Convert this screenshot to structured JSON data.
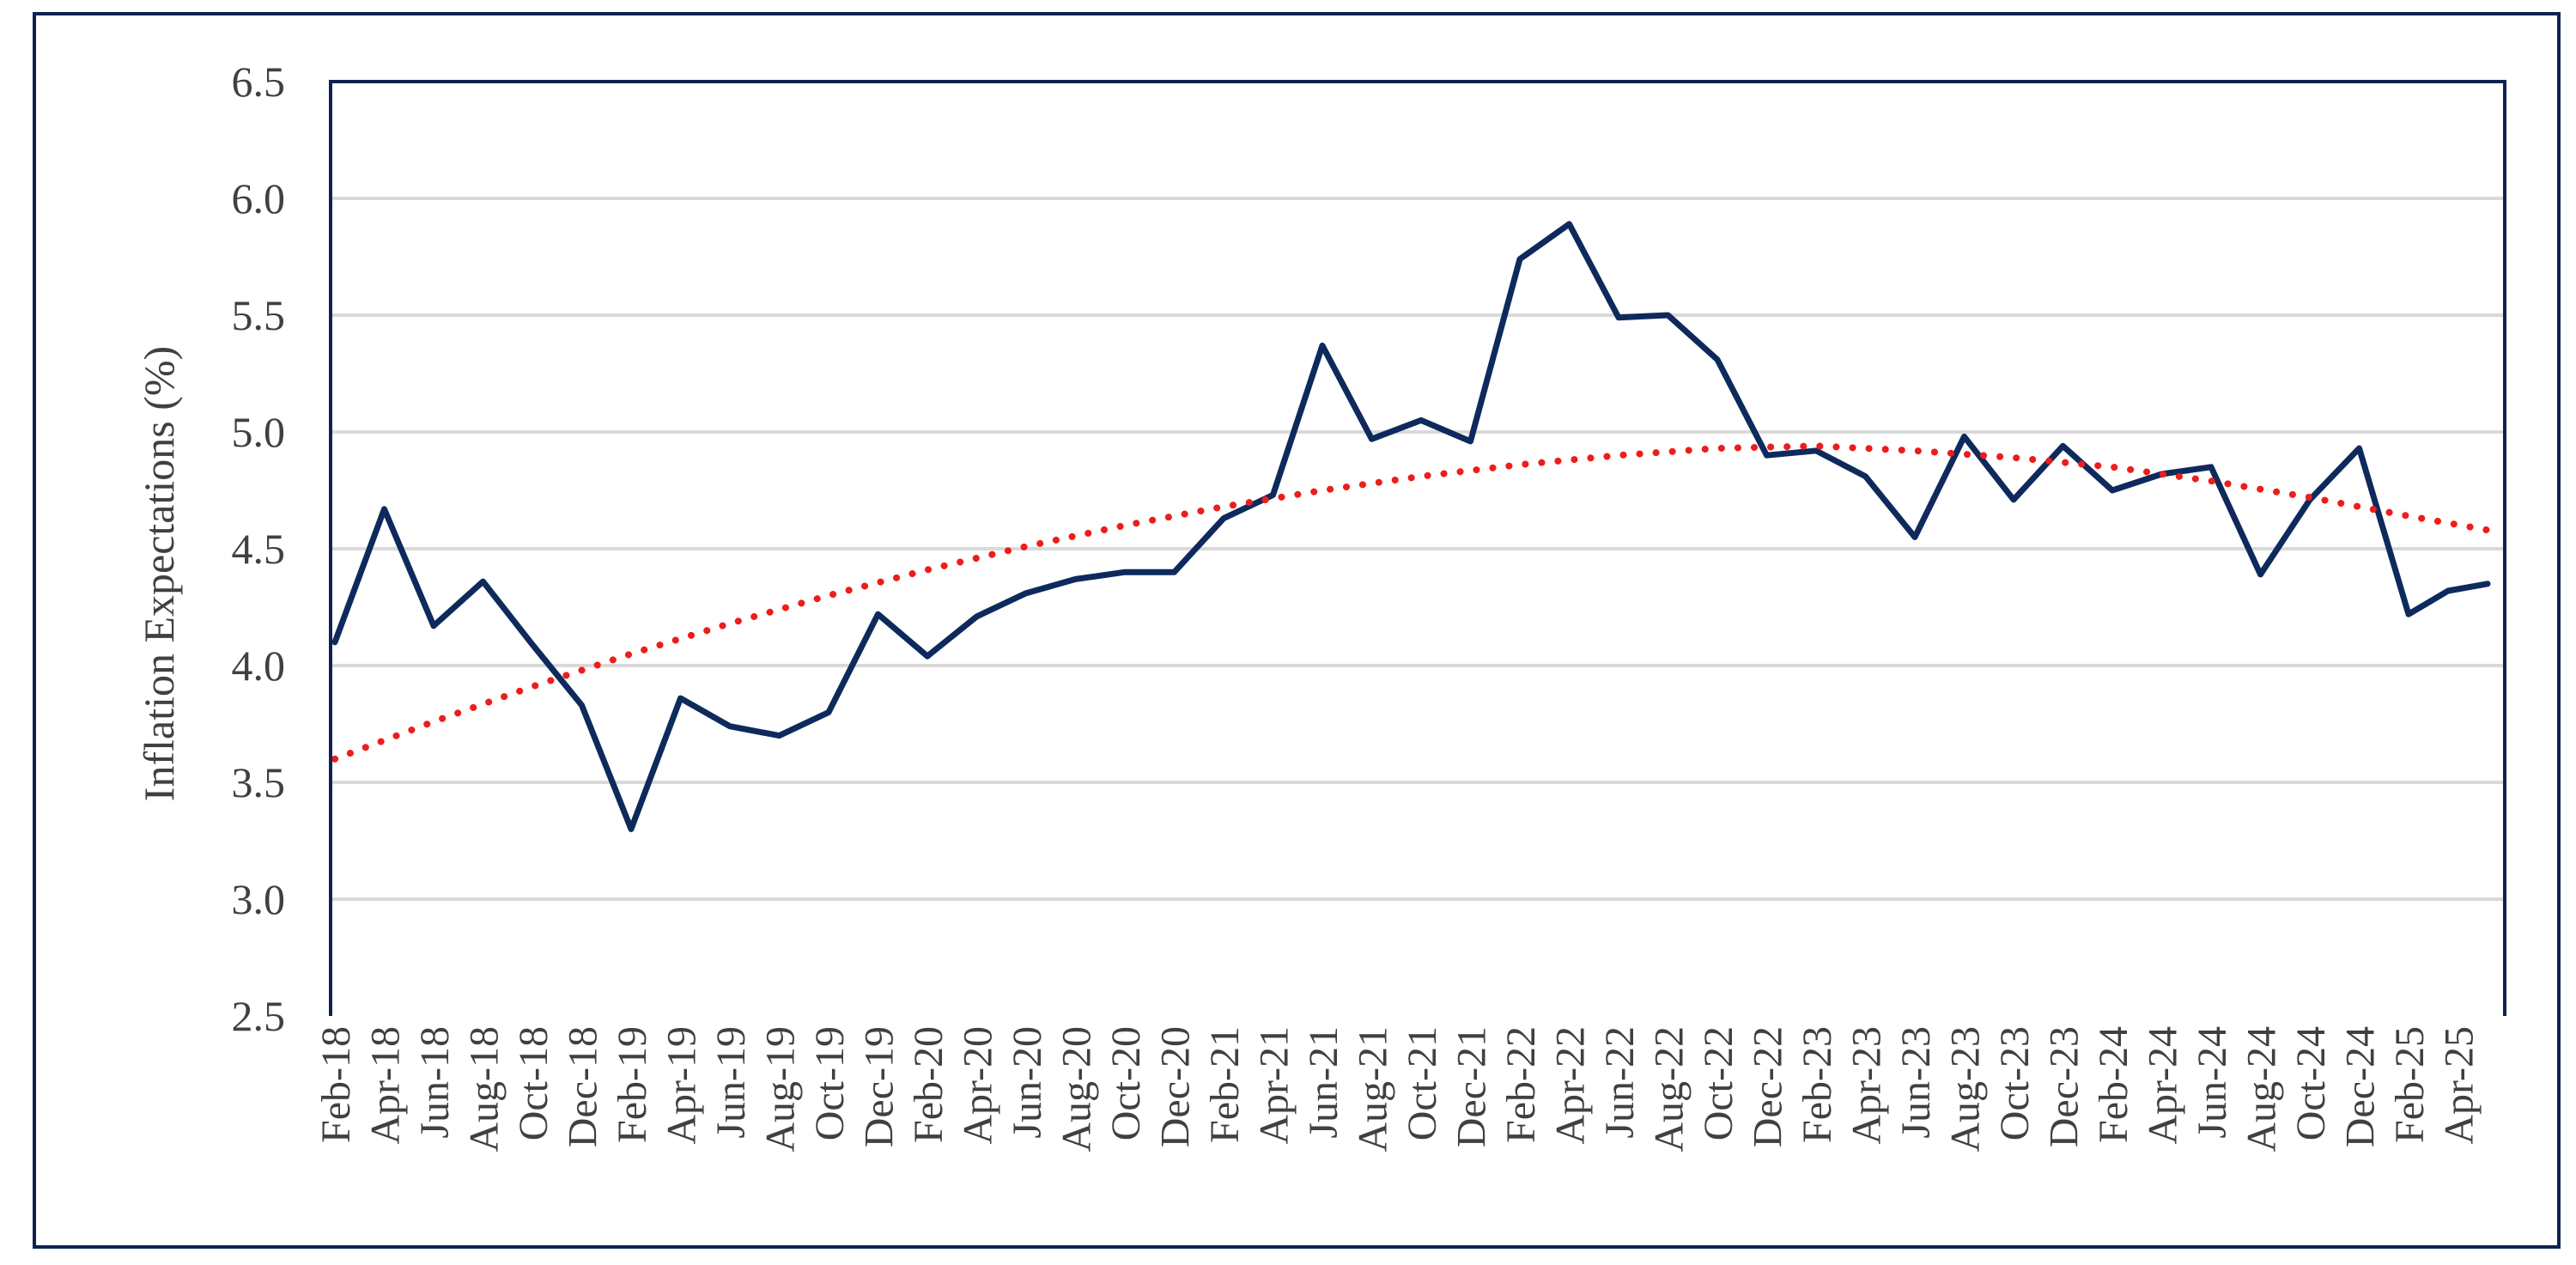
{
  "chart_data": {
    "type": "line",
    "ylabel": "Inflation Expectations (%)",
    "xlabel": "",
    "ylim": [
      2.5,
      6.5
    ],
    "yticks": [
      "2.5",
      "3.0",
      "3.5",
      "4.0",
      "4.5",
      "5.0",
      "5.5",
      "6.0",
      "6.5"
    ],
    "grid": "horizontal",
    "categories": [
      "Feb-18",
      "Apr-18",
      "Jun-18",
      "Aug-18",
      "Oct-18",
      "Dec-18",
      "Feb-19",
      "Apr-19",
      "Jun-19",
      "Aug-19",
      "Oct-19",
      "Dec-19",
      "Feb-20",
      "Apr-20",
      "Jun-20",
      "Aug-20",
      "Oct-20",
      "Dec-20",
      "Feb-21",
      "Apr-21",
      "Jun-21",
      "Aug-21",
      "Oct-21",
      "Dec-21",
      "Feb-22",
      "Apr-22",
      "Jun-22",
      "Aug-22",
      "Oct-22",
      "Dec-22",
      "Feb-23",
      "Apr-23",
      "Jun-23",
      "Aug-23",
      "Oct-23",
      "Dec-23",
      "Feb-24",
      "Apr-24",
      "Jun-24",
      "Aug-24",
      "Oct-24",
      "Dec-24",
      "Feb-25",
      "Apr-25"
    ],
    "series": [
      {
        "style": "solid",
        "color": "#0e2a5c",
        "x": [
          0,
          1,
          2,
          3,
          4,
          5,
          6,
          7,
          8,
          9,
          10,
          11,
          12,
          13,
          14,
          15,
          16,
          17,
          18,
          19,
          20,
          21,
          22,
          23,
          24,
          25,
          26,
          27,
          28,
          29,
          30,
          31,
          32,
          33,
          34,
          35,
          36,
          37,
          38,
          39,
          40,
          41,
          42,
          42.8,
          43.6
        ],
        "values": [
          4.1,
          4.67,
          4.17,
          4.36,
          4.09,
          3.83,
          3.3,
          3.86,
          3.74,
          3.7,
          3.8,
          4.22,
          4.04,
          4.21,
          4.31,
          4.37,
          4.4,
          4.4,
          4.63,
          4.73,
          5.37,
          4.97,
          5.05,
          4.96,
          5.74,
          5.89,
          5.49,
          5.5,
          5.31,
          4.9,
          4.92,
          4.81,
          4.55,
          4.98,
          4.71,
          4.94,
          4.75,
          4.82,
          4.85,
          4.39,
          4.71,
          4.93,
          4.22,
          4.32,
          4.35
        ]
      },
      {
        "style": "dotted",
        "color": "#ee1c1c",
        "x": [
          0,
          2,
          4,
          6,
          8,
          10,
          12,
          14,
          16,
          18,
          20,
          22,
          24,
          26,
          28,
          30,
          32,
          34,
          36,
          38,
          40,
          42,
          43.6
        ],
        "values": [
          3.6,
          3.76,
          3.91,
          4.05,
          4.18,
          4.3,
          4.41,
          4.51,
          4.6,
          4.68,
          4.75,
          4.81,
          4.86,
          4.9,
          4.93,
          4.94,
          4.92,
          4.89,
          4.85,
          4.79,
          4.72,
          4.64,
          4.58
        ]
      }
    ]
  }
}
